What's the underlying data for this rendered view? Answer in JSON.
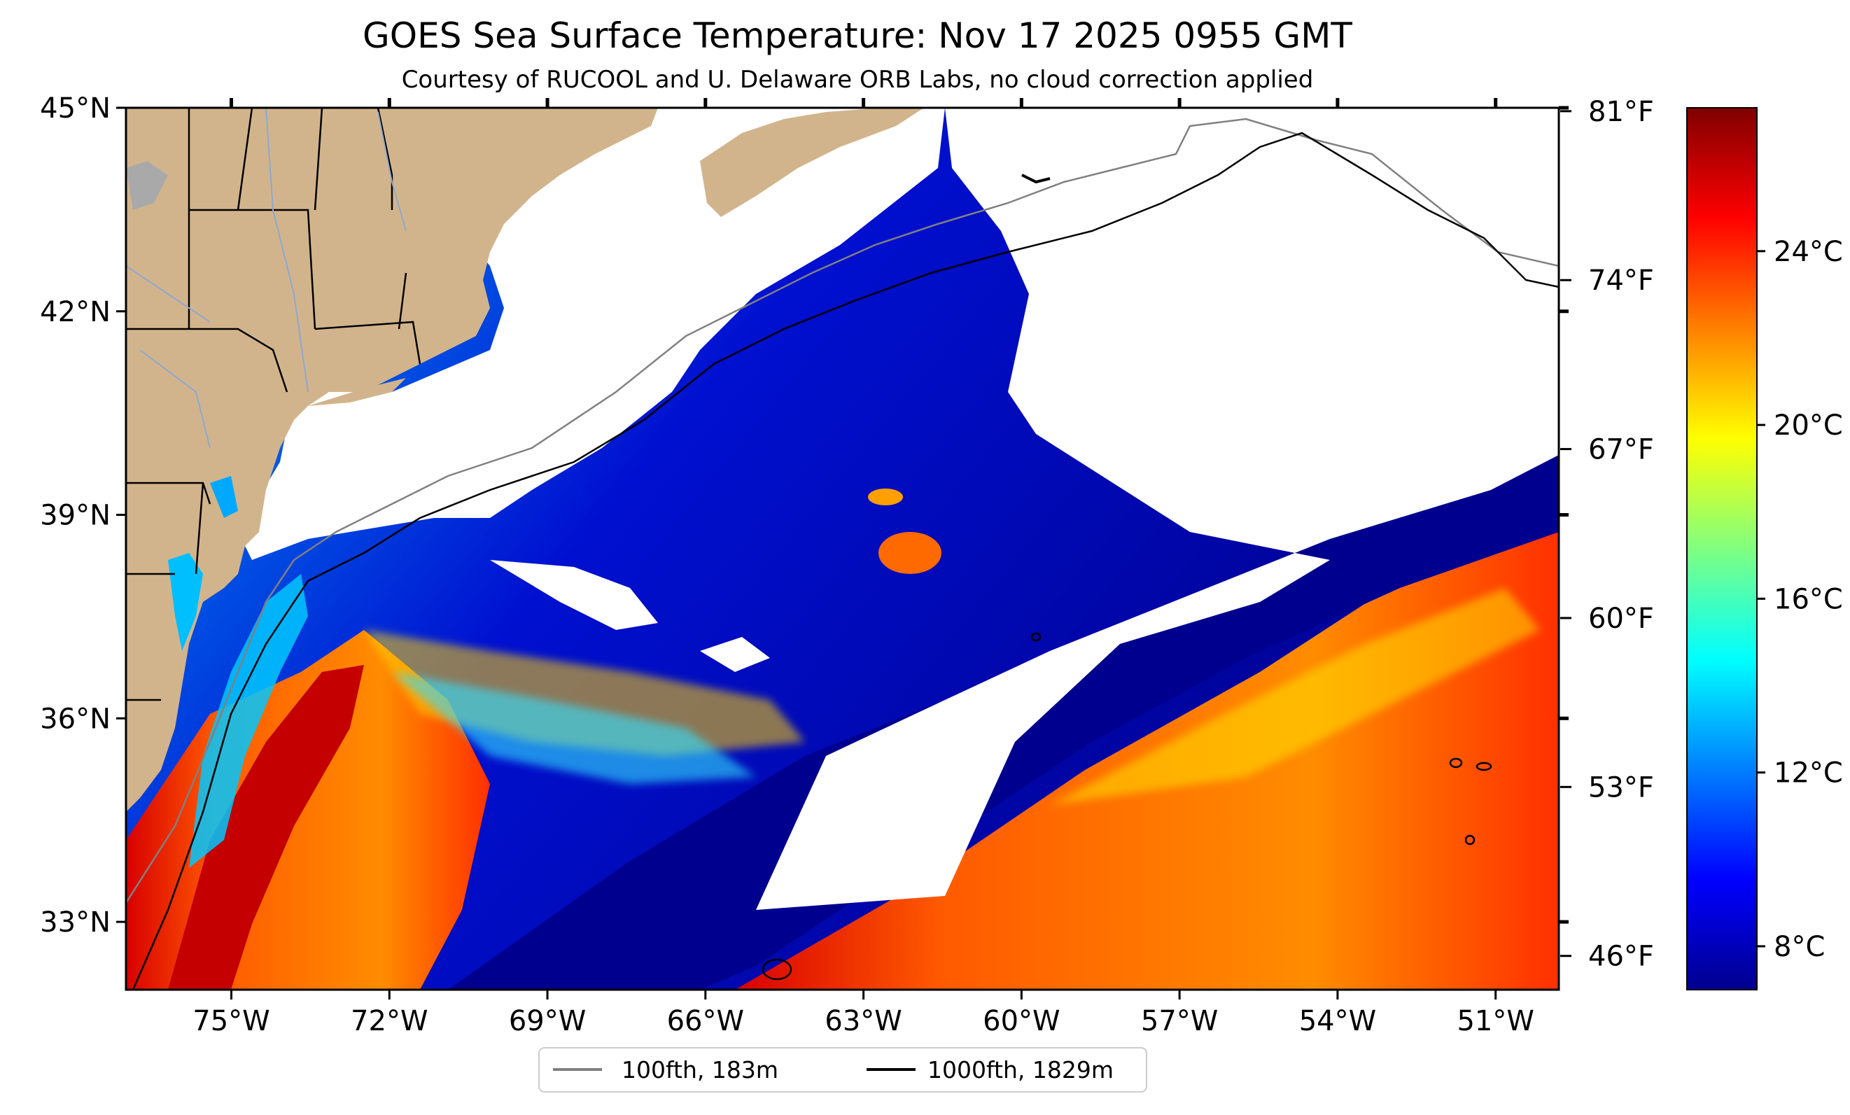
{
  "title": "GOES Sea Surface Temperature: Nov 17 2025 0955 GMT",
  "subtitle": "Courtesy of RUCOOL and U. Delaware ORB Labs, no cloud correction applied",
  "map": {
    "lon_range": [
      -77.0,
      -49.8
    ],
    "lat_range": [
      32.0,
      45.0
    ],
    "lat_ticks": [
      {
        "value": 45,
        "label": "45°N"
      },
      {
        "value": 42,
        "label": "42°N"
      },
      {
        "value": 39,
        "label": "39°N"
      },
      {
        "value": 36,
        "label": "36°N"
      },
      {
        "value": 33,
        "label": "33°N"
      }
    ],
    "lon_ticks": [
      {
        "value": -75,
        "label": "75°W"
      },
      {
        "value": -72,
        "label": "72°W"
      },
      {
        "value": -69,
        "label": "69°W"
      },
      {
        "value": -66,
        "label": "66°W"
      },
      {
        "value": -63,
        "label": "63°W"
      },
      {
        "value": -60,
        "label": "60°W"
      },
      {
        "value": -57,
        "label": "57°W"
      },
      {
        "value": -54,
        "label": "54°W"
      },
      {
        "value": -51,
        "label": "51°W"
      }
    ]
  },
  "colorbar": {
    "colormap": "jet",
    "c_range": [
      7,
      27.3
    ],
    "celsius_ticks": [
      {
        "value": 8,
        "label": "8°C"
      },
      {
        "value": 12,
        "label": "12°C"
      },
      {
        "value": 16,
        "label": "16°C"
      },
      {
        "value": 20,
        "label": "20°C"
      },
      {
        "value": 24,
        "label": "24°C"
      }
    ],
    "fahrenheit_ticks": [
      {
        "value": 46,
        "label": "46°F"
      },
      {
        "value": 53,
        "label": "53°F"
      },
      {
        "value": 60,
        "label": "60°F"
      },
      {
        "value": 67,
        "label": "67°F"
      },
      {
        "value": 74,
        "label": "74°F"
      },
      {
        "value": 81,
        "label": "81°F"
      }
    ]
  },
  "legend": {
    "placement": "bottom-center",
    "items": [
      {
        "label": "100fth, 183m",
        "color": "#808080"
      },
      {
        "label": "1000fth, 1829m",
        "color": "#000000"
      }
    ]
  },
  "colors": {
    "land": "#d2b48c",
    "cloud": "#ffffff",
    "cold": "#00008f",
    "warm": "#e03000"
  }
}
